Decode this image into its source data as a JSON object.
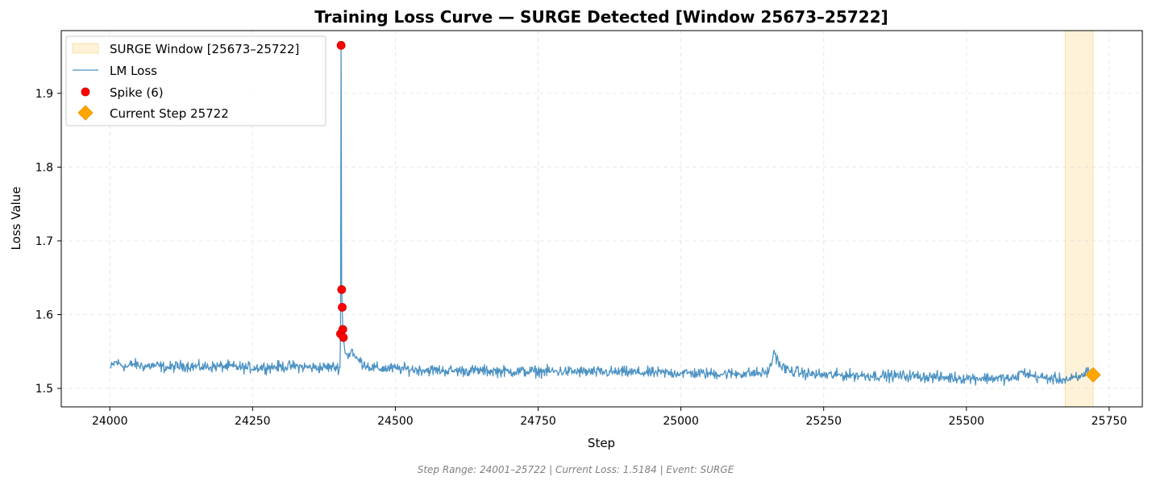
{
  "chart_data": {
    "type": "line",
    "title": "Training Loss Curve — SURGE Detected [Window 25673–25722]",
    "xlabel": "Step",
    "ylabel": "Loss Value",
    "xlim": [
      23915,
      25808
    ],
    "ylim": [
      1.475,
      1.985
    ],
    "x_ticks": [
      24000,
      24250,
      24500,
      24750,
      25000,
      25250,
      25500,
      25750
    ],
    "y_ticks": [
      1.5,
      1.6,
      1.7,
      1.8,
      1.9
    ],
    "grid": true,
    "legend_position": "upper-left",
    "surge_window": {
      "label": "SURGE Window [25673–25722]",
      "start": 25673,
      "end": 25722,
      "color": "#fde9bf"
    },
    "series": [
      {
        "name": "LM Loss",
        "color": "#1f77b4",
        "points": [
          [
            24001,
            1.527
          ],
          [
            24010,
            1.536
          ],
          [
            24020,
            1.532
          ],
          [
            24030,
            1.529
          ],
          [
            24040,
            1.533
          ],
          [
            24060,
            1.53
          ],
          [
            24080,
            1.531
          ],
          [
            24100,
            1.528
          ],
          [
            24130,
            1.531
          ],
          [
            24160,
            1.529
          ],
          [
            24200,
            1.53
          ],
          [
            24240,
            1.528
          ],
          [
            24280,
            1.529
          ],
          [
            24320,
            1.53
          ],
          [
            24360,
            1.528
          ],
          [
            24390,
            1.529
          ],
          [
            24403,
            1.528
          ],
          [
            24404,
            1.574
          ],
          [
            24405,
            1.965
          ],
          [
            24406,
            1.634
          ],
          [
            24407,
            1.61
          ],
          [
            24408,
            1.58
          ],
          [
            24409,
            1.569
          ],
          [
            24412,
            1.548
          ],
          [
            24418,
            1.544
          ],
          [
            24424,
            1.553
          ],
          [
            24430,
            1.541
          ],
          [
            24440,
            1.536
          ],
          [
            24455,
            1.529
          ],
          [
            24470,
            1.527
          ],
          [
            24500,
            1.527
          ],
          [
            24550,
            1.525
          ],
          [
            24600,
            1.524
          ],
          [
            24650,
            1.524
          ],
          [
            24700,
            1.523
          ],
          [
            24750,
            1.523
          ],
          [
            24800,
            1.523
          ],
          [
            24850,
            1.522
          ],
          [
            24900,
            1.522
          ],
          [
            24950,
            1.521
          ],
          [
            25000,
            1.521
          ],
          [
            25050,
            1.52
          ],
          [
            25100,
            1.52
          ],
          [
            25150,
            1.521
          ],
          [
            25158,
            1.53
          ],
          [
            25163,
            1.552
          ],
          [
            25168,
            1.54
          ],
          [
            25175,
            1.53
          ],
          [
            25190,
            1.524
          ],
          [
            25220,
            1.52
          ],
          [
            25250,
            1.518
          ],
          [
            25300,
            1.518
          ],
          [
            25350,
            1.517
          ],
          [
            25400,
            1.517
          ],
          [
            25450,
            1.515
          ],
          [
            25500,
            1.514
          ],
          [
            25550,
            1.514
          ],
          [
            25585,
            1.513
          ],
          [
            25595,
            1.522
          ],
          [
            25605,
            1.52
          ],
          [
            25620,
            1.516
          ],
          [
            25650,
            1.513
          ],
          [
            25680,
            1.512
          ],
          [
            25700,
            1.515
          ],
          [
            25712,
            1.525
          ],
          [
            25722,
            1.518
          ]
        ]
      },
      {
        "name": "Spike (6)",
        "type": "scatter",
        "color": "#ff0000",
        "points": [
          [
            24404,
            1.574
          ],
          [
            24405,
            1.965
          ],
          [
            24406,
            1.634
          ],
          [
            24407,
            1.61
          ],
          [
            24408,
            1.58
          ],
          [
            24409,
            1.569
          ]
        ]
      },
      {
        "name": "Current Step 25722",
        "type": "scatter",
        "marker": "diamond",
        "color": "#ffa500",
        "points": [
          [
            25722,
            1.5184
          ]
        ]
      }
    ],
    "footer": "Step Range: 24001–25722 | Current Loss: 1.5184 | Event: SURGE"
  }
}
